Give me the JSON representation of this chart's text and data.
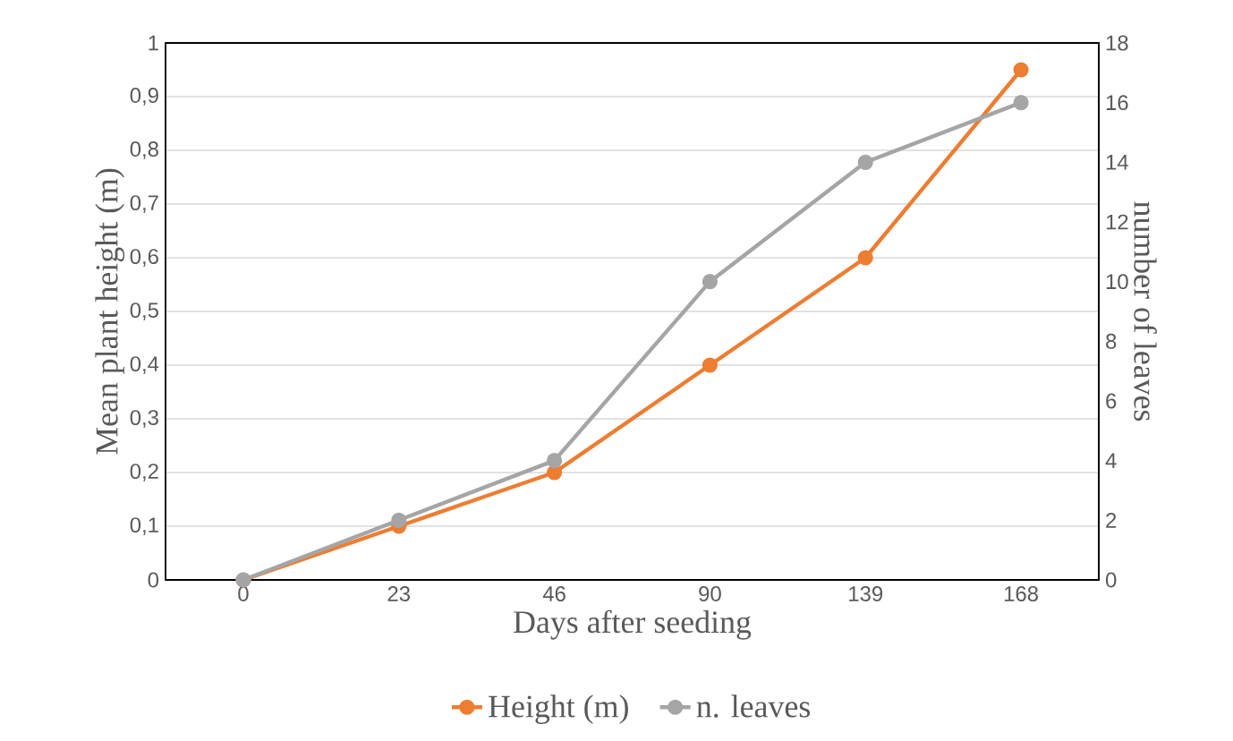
{
  "chart_data": {
    "type": "line",
    "xlabel": "Days after seeding",
    "ylabel": "Mean plant height (m)",
    "y2label": "number of leaves",
    "categories": [
      "0",
      "23",
      "46",
      "90",
      "139",
      "168"
    ],
    "series": [
      {
        "name": "Height (m)",
        "color": "#ed7d31",
        "values": [
          0,
          0.1,
          0.2,
          0.4,
          0.6,
          0.95
        ]
      },
      {
        "name": "n. leaves",
        "color": "#a5a5a5",
        "axis": "y2",
        "values": [
          0,
          2,
          4,
          10,
          14,
          16
        ]
      }
    ],
    "ylim": [
      0,
      1
    ],
    "yticks": [
      0,
      {
        "value": 0.1,
        "label": "0,1"
      },
      {
        "value": 0.2,
        "label": "0,2"
      },
      {
        "value": 0.3,
        "label": "0,3"
      },
      {
        "value": 0.4,
        "label": "0,4"
      },
      {
        "value": 0.5,
        "label": "0,5"
      },
      {
        "value": 0.6,
        "label": "0,6"
      },
      {
        "value": 0.7,
        "label": "0,7"
      },
      {
        "value": 0.8,
        "label": "0,8"
      },
      {
        "value": 0.9,
        "label": "0,9"
      },
      1
    ],
    "y2lim": [
      0,
      18
    ],
    "y2ticks": [
      0,
      2,
      4,
      6,
      8,
      10,
      12,
      14,
      16,
      18
    ],
    "grid": "y",
    "legend": "bottom",
    "marker": "circle",
    "line_style": "solid"
  }
}
